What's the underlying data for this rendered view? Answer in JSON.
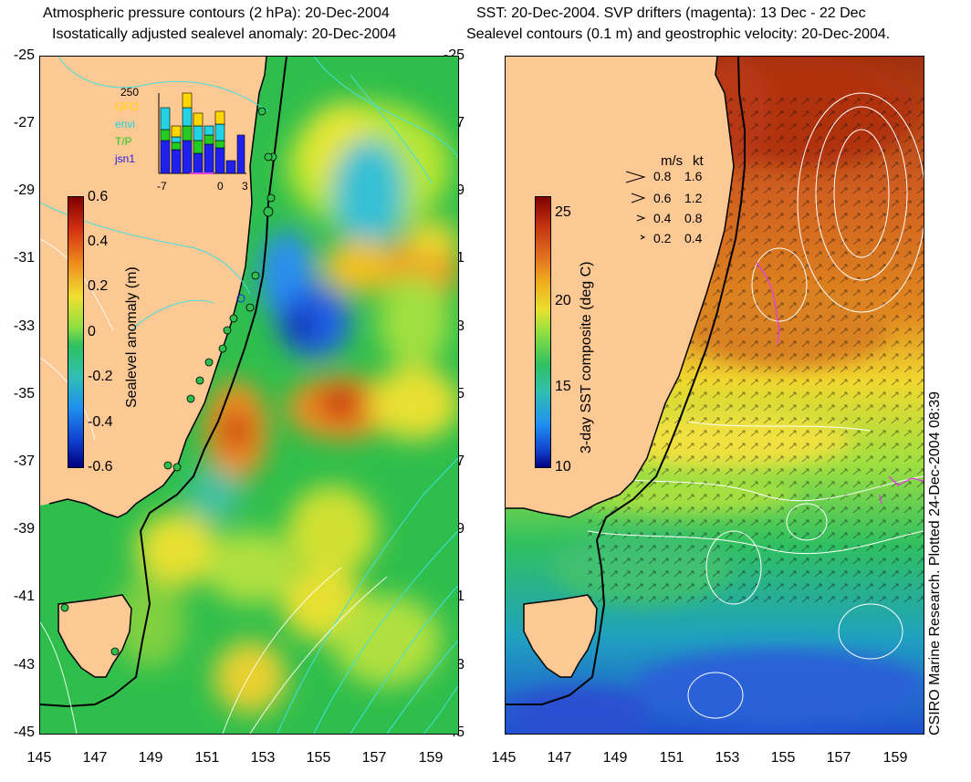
{
  "left": {
    "title1": "Atmospheric pressure contours (2 hPa): 20-Dec-2004",
    "title2": "Isostatically adjusted sealevel anomaly: 20-Dec-2004",
    "colorbar_label": "Sealevel anomaly (m)",
    "colorbar_ticks": [
      "0.6",
      "0.4",
      "0.2",
      "0",
      "-0.2",
      "-0.4",
      "-0.6"
    ],
    "inset": {
      "top_value": "250",
      "legend": [
        {
          "label": "GFO",
          "color": "#ffd700"
        },
        {
          "label": "envi",
          "color": "#22d3e6"
        },
        {
          "label": "T/P",
          "color": "#22cc22"
        },
        {
          "label": "jsn1",
          "color": "#2020ee"
        }
      ],
      "x_ticks": [
        "-7",
        "0",
        "3"
      ]
    }
  },
  "right": {
    "title1": "SST: 20-Dec-2004. SVP drifters (magenta): 13 Dec - 22 Dec",
    "title2": "Sealevel contours (0.1 m) and geostrophic velocity: 20-Dec-2004.",
    "colorbar_label": "3-day SST composite (deg C)",
    "colorbar_ticks": [
      "25",
      "20",
      "15",
      "10"
    ],
    "velocity_legend": {
      "header_ms": "m/s",
      "header_kt": "kt",
      "rows": [
        {
          "ms": "0.8",
          "kt": "1.6"
        },
        {
          "ms": "0.6",
          "kt": "1.2"
        },
        {
          "ms": "0.4",
          "kt": "0.8"
        },
        {
          "ms": "0.2",
          "kt": "0.4"
        }
      ]
    }
  },
  "y_ticks": [
    "-25",
    "-27",
    "-29",
    "-31",
    "-33",
    "-35",
    "-37",
    "-39",
    "-41",
    "-43",
    "-45"
  ],
  "x_ticks": [
    "145",
    "147",
    "149",
    "151",
    "153",
    "155",
    "157",
    "159"
  ],
  "credit": "CSIRO Marine Research. Plotted 24-Dec-2004 08:39",
  "colors": {
    "land": "#fcc893",
    "coast": "#000000",
    "contour_cyan": "#40e0e0",
    "contour_white": "#ffffff",
    "drifter": "#e040e0"
  }
}
